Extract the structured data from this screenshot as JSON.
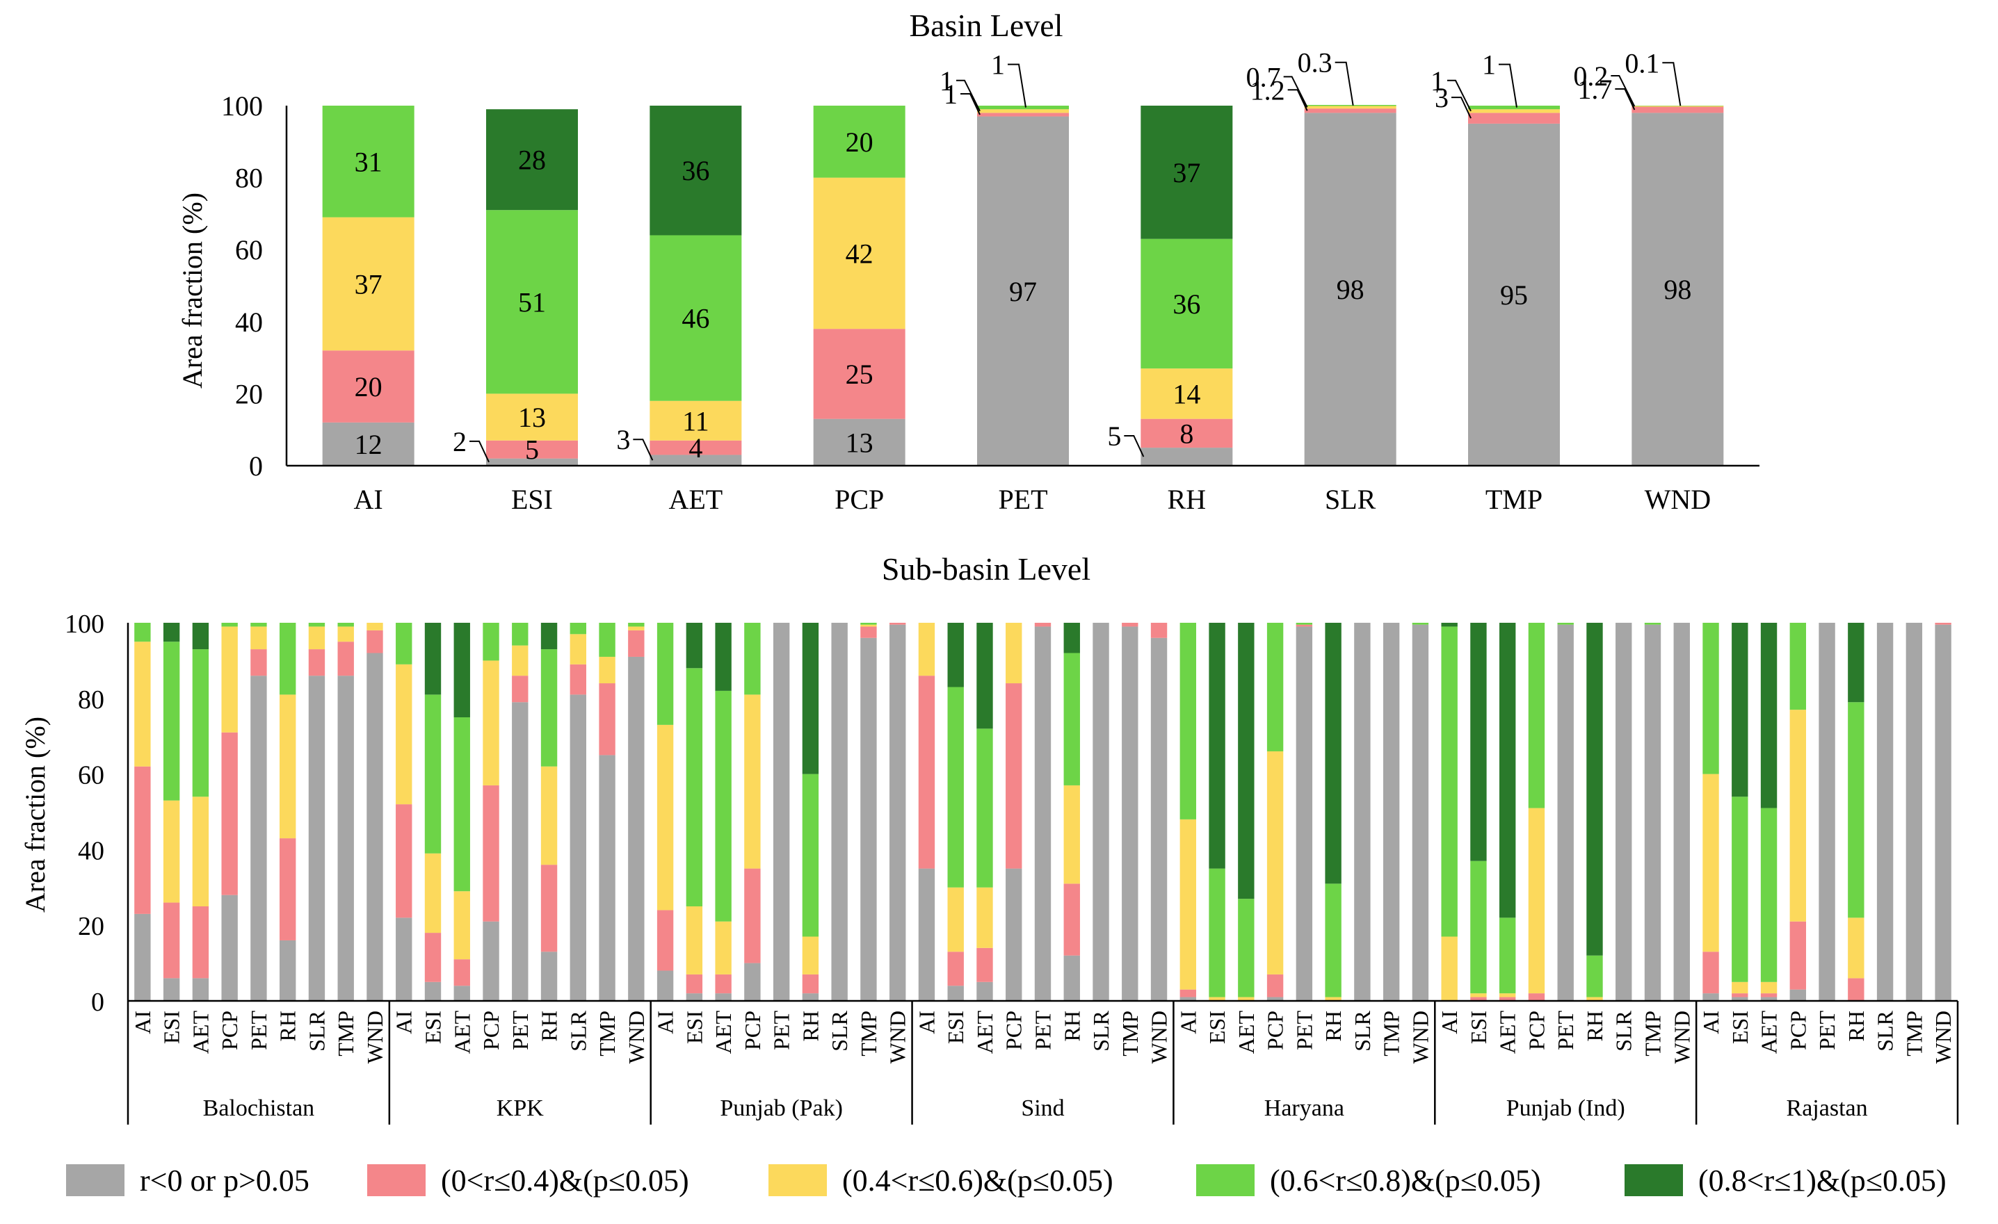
{
  "colors": {
    "c0": "#a6a6a6",
    "c1": "#f4868a",
    "c2": "#fcd95c",
    "c3": "#6dd447",
    "c4": "#2a7a2b"
  },
  "legend": [
    {
      "key": "c0",
      "label": "r<0 or p>0.05"
    },
    {
      "key": "c1",
      "label": "(0<r≤0.4)&(p≤0.05)"
    },
    {
      "key": "c2",
      "label": "(0.4<r≤0.6)&(p≤0.05)"
    },
    {
      "key": "c3",
      "label": "(0.6<r≤0.8)&(p≤0.05)"
    },
    {
      "key": "c4",
      "label": "(0.8<r≤1)&(p≤0.05)"
    }
  ],
  "chart_data": [
    {
      "type": "bar",
      "stacked": true,
      "title": "Basin Level",
      "ylabel": "Area fraction (%)",
      "ylim": [
        0,
        100
      ],
      "yticks": [
        "0",
        "20",
        "40",
        "60",
        "80",
        "100"
      ],
      "categories": [
        "AI",
        "ESI",
        "AET",
        "PCP",
        "PET",
        "RH",
        "SLR",
        "TMP",
        "WND"
      ],
      "series": [
        {
          "key": "c0",
          "name": "r<0 or p>0.05",
          "values": [
            12,
            2,
            3,
            13,
            97,
            5,
            98,
            95,
            98
          ]
        },
        {
          "key": "c1",
          "name": "(0<r≤0.4)&(p≤0.05)",
          "values": [
            20,
            5,
            4,
            25,
            1,
            8,
            1.2,
            3,
            1.7
          ]
        },
        {
          "key": "c2",
          "name": "(0.4<r≤0.6)&(p≤0.05)",
          "values": [
            37,
            13,
            11,
            42,
            1,
            14,
            0.7,
            1,
            0.2
          ]
        },
        {
          "key": "c3",
          "name": "(0.6<r≤0.8)&(p≤0.05)",
          "values": [
            31,
            51,
            46,
            20,
            1,
            36,
            0.3,
            1,
            0.1
          ]
        },
        {
          "key": "c4",
          "name": "(0.8<r≤1)&(p≤0.05)",
          "values": [
            0,
            28,
            36,
            0,
            0,
            37,
            0,
            0,
            0
          ]
        }
      ],
      "segment_labels": [
        [
          "12",
          "20",
          "37",
          "31",
          ""
        ],
        [
          "",
          "5",
          "13",
          "51",
          "28"
        ],
        [
          "",
          "4",
          "11",
          "46",
          "36"
        ],
        [
          "13",
          "25",
          "42",
          "20",
          ""
        ],
        [
          "97",
          "",
          "",
          "",
          ""
        ],
        [
          "",
          "8",
          "14",
          "36",
          "37"
        ],
        [
          "98",
          "",
          "",
          "",
          ""
        ],
        [
          "95",
          "",
          "",
          "",
          ""
        ],
        [
          "98",
          "",
          "",
          "",
          ""
        ]
      ],
      "callouts": [
        {
          "bar": 1,
          "seg": 0,
          "text": "2",
          "side": "left"
        },
        {
          "bar": 2,
          "seg": 0,
          "text": "3",
          "side": "left"
        },
        {
          "bar": 5,
          "seg": 0,
          "text": "5",
          "side": "left"
        },
        {
          "bar": 4,
          "seg": 1,
          "text": "1",
          "side": "left"
        },
        {
          "bar": 4,
          "seg": 2,
          "text": "1",
          "side": "upper-left"
        },
        {
          "bar": 4,
          "seg": 3,
          "text": "1",
          "side": "top"
        },
        {
          "bar": 6,
          "seg": 1,
          "text": "1.2",
          "side": "left"
        },
        {
          "bar": 6,
          "seg": 2,
          "text": "0.7",
          "side": "upper-left"
        },
        {
          "bar": 6,
          "seg": 3,
          "text": "0.3",
          "side": "top"
        },
        {
          "bar": 7,
          "seg": 1,
          "text": "3",
          "side": "left"
        },
        {
          "bar": 7,
          "seg": 2,
          "text": "1",
          "side": "upper-left"
        },
        {
          "bar": 7,
          "seg": 3,
          "text": "1",
          "side": "top"
        },
        {
          "bar": 8,
          "seg": 1,
          "text": "1.7",
          "side": "left"
        },
        {
          "bar": 8,
          "seg": 2,
          "text": "0.2",
          "side": "upper-left"
        },
        {
          "bar": 8,
          "seg": 3,
          "text": "0.1",
          "side": "top"
        }
      ]
    },
    {
      "type": "bar",
      "stacked": true,
      "title": "Sub-basin Level",
      "ylabel": "Area fraction (%)",
      "ylim": [
        0,
        100
      ],
      "yticks": [
        "0",
        "20",
        "40",
        "60",
        "80",
        "100"
      ],
      "variables": [
        "AI",
        "ESI",
        "AET",
        "PCP",
        "PET",
        "RH",
        "SLR",
        "TMP",
        "WND"
      ],
      "groups": [
        {
          "name": "Balochistan",
          "values": [
            [
              23,
              39,
              33,
              5,
              0
            ],
            [
              6,
              20,
              27,
              42,
              5
            ],
            [
              6,
              19,
              29,
              39,
              7
            ],
            [
              28,
              43,
              28,
              1,
              0
            ],
            [
              86,
              7,
              6,
              1,
              0
            ],
            [
              16,
              27,
              38,
              19,
              0
            ],
            [
              86,
              7,
              6,
              1,
              0
            ],
            [
              86,
              9,
              4,
              1,
              0
            ],
            [
              92,
              6,
              2,
              0,
              0
            ]
          ]
        },
        {
          "name": "KPK",
          "values": [
            [
              22,
              30,
              37,
              11,
              0
            ],
            [
              5,
              13,
              21,
              42,
              19
            ],
            [
              4,
              7,
              18,
              46,
              25
            ],
            [
              21,
              36,
              33,
              10,
              0
            ],
            [
              79,
              7,
              8,
              6,
              0
            ],
            [
              13,
              23,
              26,
              31,
              7
            ],
            [
              81,
              8,
              8,
              3,
              0
            ],
            [
              65,
              19,
              7,
              9,
              0
            ],
            [
              91,
              7,
              1,
              1,
              0
            ]
          ]
        },
        {
          "name": "Punjab (Pak)",
          "values": [
            [
              8,
              16,
              49,
              27,
              0
            ],
            [
              2,
              5,
              18,
              63,
              12
            ],
            [
              2,
              5,
              14,
              61,
              18
            ],
            [
              10,
              25,
              46,
              19,
              0
            ],
            [
              100,
              0,
              0,
              0,
              0
            ],
            [
              2,
              5,
              10,
              43,
              40
            ],
            [
              100,
              0,
              0,
              0,
              0
            ],
            [
              96,
              3,
              0.5,
              0.5,
              0
            ],
            [
              99.5,
              0.5,
              0,
              0,
              0
            ]
          ]
        },
        {
          "name": "Sind",
          "values": [
            [
              35,
              51,
              14,
              0,
              0
            ],
            [
              4,
              9,
              17,
              53,
              17
            ],
            [
              5,
              9,
              16,
              42,
              28
            ],
            [
              35,
              49,
              16,
              0,
              0
            ],
            [
              99,
              1,
              0,
              0,
              0
            ],
            [
              12,
              19,
              26,
              35,
              8
            ],
            [
              100,
              0,
              0,
              0,
              0
            ],
            [
              99,
              1,
              0,
              0,
              0
            ],
            [
              96,
              4,
              0,
              0,
              0
            ]
          ]
        },
        {
          "name": "Haryana",
          "values": [
            [
              1,
              2,
              45,
              52,
              0
            ],
            [
              0,
              0,
              1,
              34,
              65
            ],
            [
              0,
              0,
              1,
              26,
              73
            ],
            [
              1,
              6,
              59,
              34,
              0
            ],
            [
              99,
              0.5,
              0,
              0.5,
              0
            ],
            [
              0,
              0,
              1,
              30,
              69
            ],
            [
              100,
              0,
              0,
              0,
              0
            ],
            [
              100,
              0,
              0,
              0,
              0
            ],
            [
              99.5,
              0,
              0,
              0.5,
              0
            ]
          ]
        },
        {
          "name": "Punjab (Ind)",
          "values": [
            [
              0,
              0,
              17,
              82,
              1
            ],
            [
              0,
              1,
              1,
              35,
              63
            ],
            [
              0,
              1,
              1,
              20,
              78
            ],
            [
              0,
              2,
              49,
              49,
              0
            ],
            [
              99.5,
              0,
              0,
              0.5,
              0
            ],
            [
              0,
              0,
              1,
              11,
              88
            ],
            [
              100,
              0,
              0,
              0,
              0
            ],
            [
              99.5,
              0,
              0,
              0.5,
              0
            ],
            [
              100,
              0,
              0,
              0,
              0
            ]
          ]
        },
        {
          "name": "Rajastan",
          "values": [
            [
              2,
              11,
              47,
              40,
              0
            ],
            [
              1,
              1,
              3,
              49,
              46
            ],
            [
              1,
              1,
              3,
              46,
              49
            ],
            [
              3,
              18,
              56,
              23,
              0
            ],
            [
              100,
              0,
              0,
              0,
              0
            ],
            [
              0,
              6,
              16,
              57,
              21
            ],
            [
              100,
              0,
              0,
              0,
              0
            ],
            [
              100,
              0,
              0,
              0,
              0
            ],
            [
              99.5,
              0.5,
              0,
              0,
              0
            ]
          ]
        }
      ]
    }
  ]
}
